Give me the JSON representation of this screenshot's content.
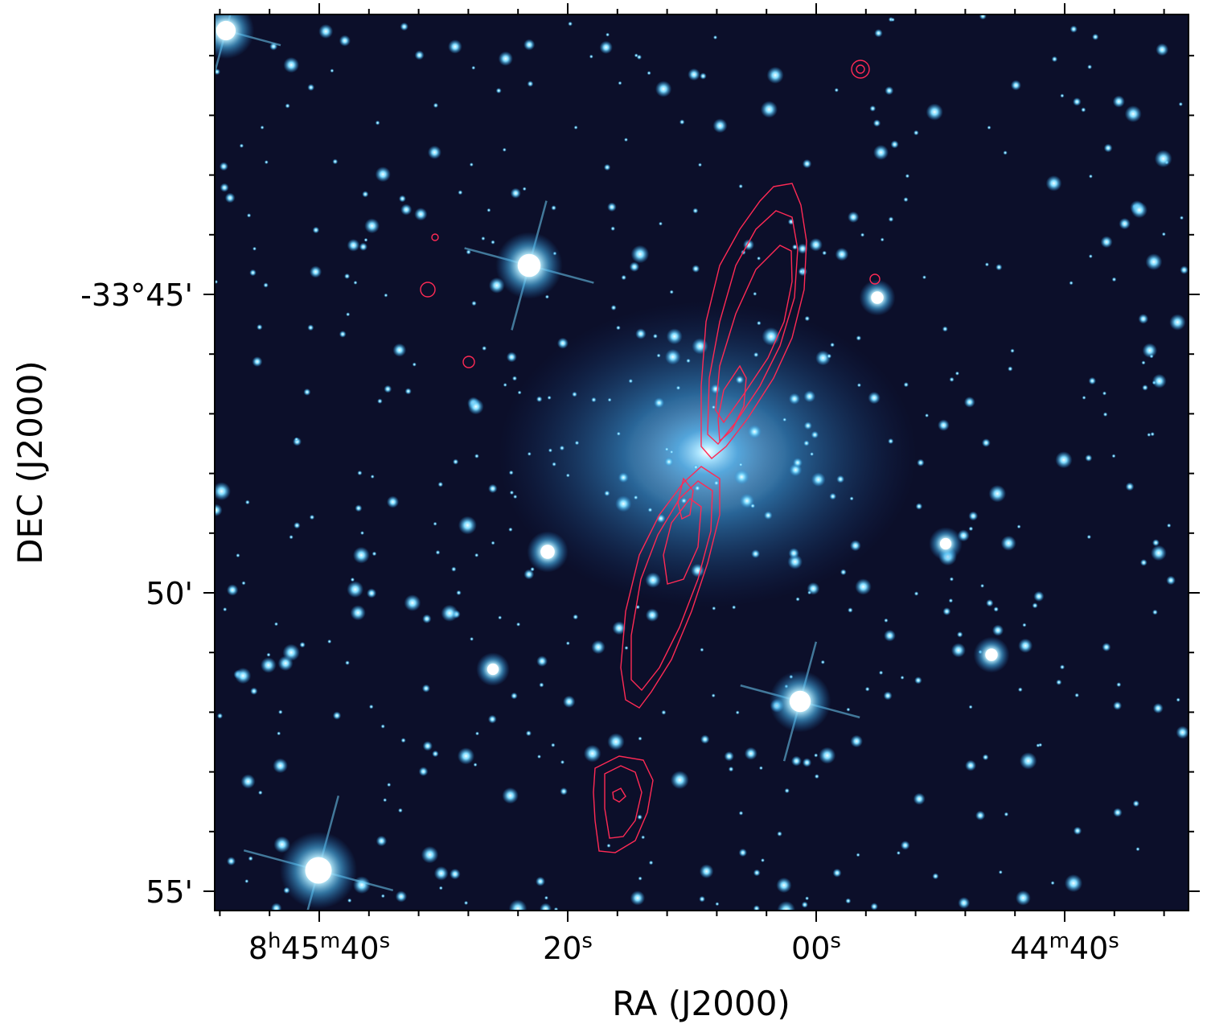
{
  "axes": {
    "xlabel": "RA (J2000)",
    "ylabel": "DEC (J2000)",
    "x_ticks": [
      {
        "parts": [
          [
            "8",
            ""
          ],
          [
            "h",
            "sup"
          ],
          [
            "45",
            ""
          ],
          [
            "m",
            "sup"
          ],
          [
            "40",
            ""
          ],
          [
            "s",
            "sup"
          ]
        ],
        "ra_s": 40,
        "ra_m": 45
      },
      {
        "parts": [
          [
            "20",
            ""
          ],
          [
            "s",
            "sup"
          ]
        ],
        "ra_s": 20,
        "ra_m": 45
      },
      {
        "parts": [
          [
            "00",
            ""
          ],
          [
            "s",
            "sup"
          ]
        ],
        "ra_s": 0,
        "ra_m": 45
      },
      {
        "parts": [
          [
            "44",
            ""
          ],
          [
            "m",
            "sup"
          ],
          [
            "40",
            ""
          ],
          [
            "s",
            "sup"
          ]
        ],
        "ra_s": 40,
        "ra_m": 44
      }
    ],
    "y_ticks": [
      {
        "label": "-33°45'",
        "dec_arcmin": -45
      },
      {
        "label": "50'",
        "dec_arcmin": -50
      },
      {
        "label": "55'",
        "dec_arcmin": -55
      }
    ]
  },
  "colors": {
    "sky_background": "#0c0f2a",
    "contour": "#ff2a55",
    "star": "#49c8f5",
    "star_core": "#e8fbff",
    "galaxy_glow": "#5cb8f0"
  }
}
